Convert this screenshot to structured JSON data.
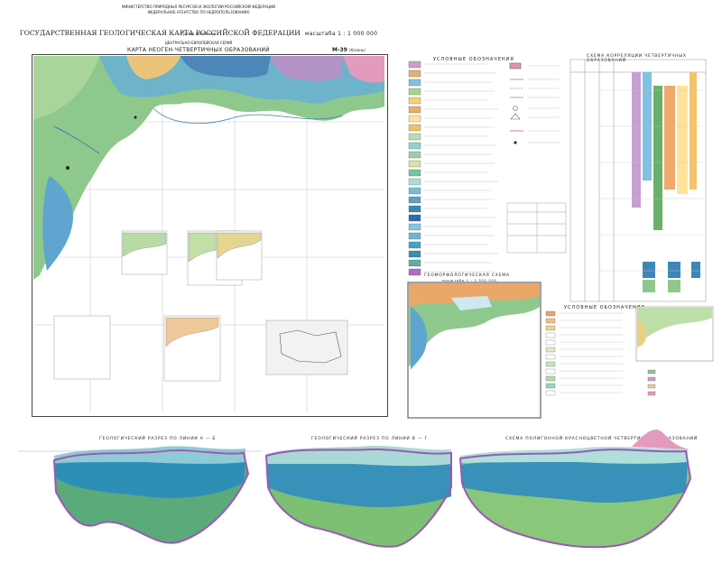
{
  "header": {
    "ministry": "МИНИСТЕРСТВО ПРИРОДНЫХ РЕСУРСОВ И ЭКОЛОГИИ РОССИЙСКОЙ ФЕДЕРАЦИИ",
    "agency": "ФЕДЕРАЛЬНОЕ АГЕНТСТВО ПО НЕДРОПОЛЬЗОВАНИЮ",
    "title": "ГОСУДАРСТВЕННАЯ ГЕОЛОГИЧЕСКАЯ КАРТА РОССИЙСКОЙ ФЕДЕРАЦИИ",
    "scale": "масштаба 1 : 1 000 000",
    "generation": "Третье поколение",
    "series": "ЦЕНТРАЛЬНО-ЕВРОПЕЙСКАЯ СЕРИЯ",
    "map_title": "КАРТА НЕОГЕН-ЧЕТВЕРТИЧНЫХ ОБРАЗОВАНИЙ",
    "sheet": "M-39",
    "sheet_name": "(Казань)"
  },
  "legend": {
    "main_title": "УСЛОВНЫЕ ОБОЗНАЧЕНИЯ",
    "right_title": "УСЛОВНЫЕ ОБОЗНАЧЕНИЯ",
    "scheme_title": "СХЕМА КОРРЕЛЯЦИИ ЧЕТВЕРТИЧНЫХ ОБРАЗОВАНИЙ"
  },
  "inset": {
    "geomorph": "ГЕОМОРФОЛОГИЧЕСКАЯ СХЕМА",
    "geomorph_scale": "масштаба 1 : 2 500 000"
  },
  "sections": {
    "s1": "ГЕОЛОГИЧЕСКИЙ РАЗРЕЗ ПО ЛИНИИ А — Б",
    "s2": "ГЕОЛОГИЧЕСКИЙ РАЗРЕЗ ПО ЛИНИИ В — Г",
    "s3": "СХЕМА ПОЛИГОННОЙ КРАСНОЦВЕТНОЙ ЧЕТВЕРТИЧНЫХ ОБРАЗОВАНИЙ"
  },
  "colors": {
    "sea_blue": "#5ea6cf",
    "water_light": "#cfe8f2",
    "green": "#8fc88c",
    "ochre": "#e9c47a",
    "violet": "#b493c6",
    "pink": "#e39bbd",
    "frame": "#444444"
  }
}
